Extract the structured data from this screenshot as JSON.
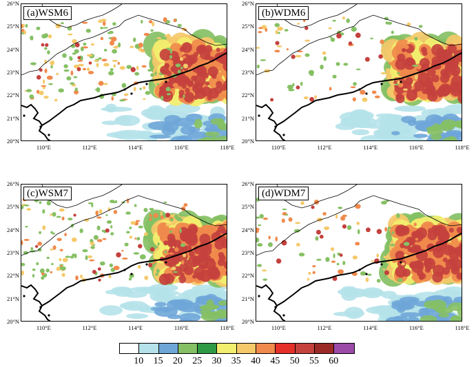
{
  "panels": [
    {
      "label": "(a)WSM6",
      "data_name": "panel-a-wsm6"
    },
    {
      "label": "(b)WDM6",
      "data_name": "panel-b-wdm6"
    },
    {
      "label": "(c)WSM7",
      "data_name": "panel-c-wsm7"
    },
    {
      "label": "(d)WDM7",
      "data_name": "panel-d-wdm7"
    }
  ],
  "lat_labels": [
    "26°N",
    "25°N",
    "24°N",
    "23°N",
    "22°N",
    "21°N",
    "20°N"
  ],
  "lon_labels": [
    "110°E",
    "112°E",
    "114°E",
    "116°E",
    "118°E"
  ],
  "map_extent": {
    "lon_min": 109,
    "lon_max": 118,
    "lat_min": 20,
    "lat_max": 26
  },
  "colorbar": {
    "levels": [
      "10",
      "15",
      "20",
      "25",
      "30",
      "35",
      "40",
      "45",
      "50",
      "55",
      "60"
    ],
    "colors": [
      "#ffffff",
      "#b5e2ea",
      "#6fa6d8",
      "#86c064",
      "#2f9a45",
      "#f2ee6e",
      "#f5c96a",
      "#f08a4c",
      "#e5302a",
      "#c4413d",
      "#9b2a26",
      "#9c4aa8"
    ]
  }
}
